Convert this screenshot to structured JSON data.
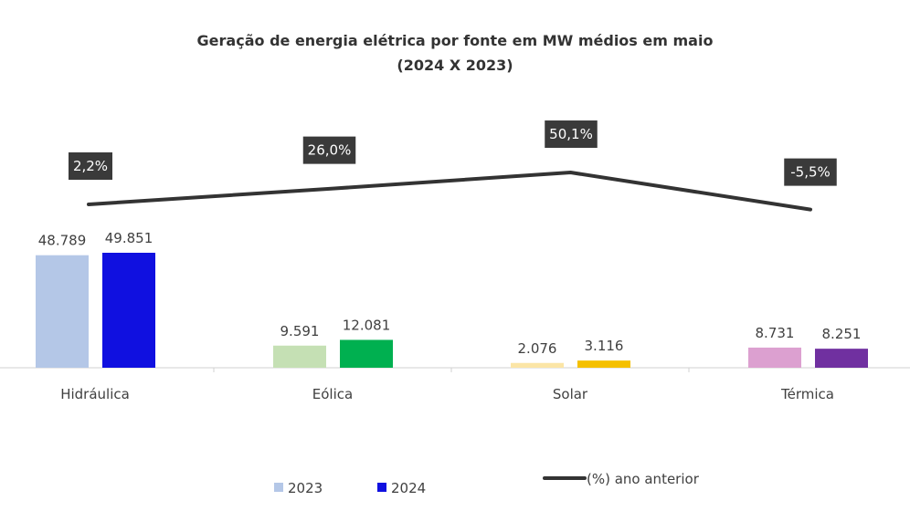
{
  "chart_data": {
    "type": "bar",
    "title": "Geração de energia elétrica por fonte em MW médios em maio",
    "subtitle": "(2024 X 2023)",
    "categories": [
      "Hidráulica",
      "Eólica",
      "Solar",
      "Térmica"
    ],
    "series": [
      {
        "name": "2023",
        "values": [
          48789,
          9591,
          2076,
          8731
        ],
        "labels": [
          "48.789",
          "9.591",
          "2.076",
          "8.731"
        ],
        "colors": [
          "#b4c7e7",
          "#c5e0b4",
          "#fbe5a6",
          "#dca0d0"
        ]
      },
      {
        "name": "2024",
        "values": [
          49851,
          12081,
          3116,
          8251
        ],
        "labels": [
          "49.851",
          "12.081",
          "3.116",
          "8.251"
        ],
        "colors": [
          "#1010e0",
          "#00b050",
          "#f5c000",
          "#7030a0"
        ]
      }
    ],
    "line_series": {
      "name": "(%) ano anterior",
      "values": [
        2.2,
        26.0,
        50.1,
        -5.5
      ],
      "labels": [
        "2,2%",
        "26,0%",
        "50,1%",
        "-5,5%"
      ],
      "color": "#333333",
      "axis": "secondary"
    },
    "legend": {
      "placement": "bottom",
      "colors": {
        "2023": "#b4c7e7",
        "2024": "#1010e0",
        "line": "#333333"
      }
    },
    "grid": false
  }
}
